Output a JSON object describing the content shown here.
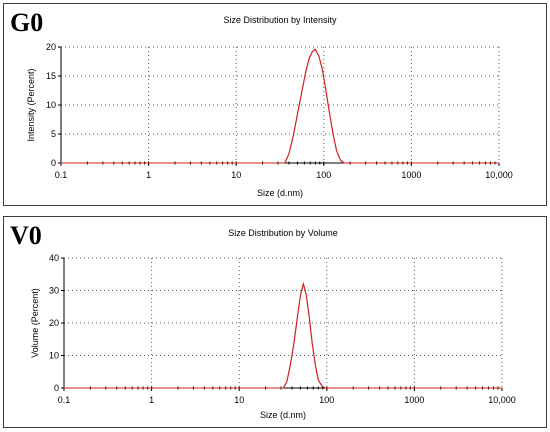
{
  "panels": [
    {
      "tag": "G0"
    },
    {
      "tag": "V0"
    }
  ],
  "colors": {
    "curve": "#d02020",
    "grid": "#555555",
    "axis": "#000000",
    "marker": "#000000"
  },
  "chart_data": [
    {
      "type": "line",
      "title": "Size Distribution by Intensity",
      "xlabel": "Size (d.nm)",
      "ylabel": "Intensity (Percent)",
      "x_scale": "log",
      "xlim": [
        0.1,
        10000
      ],
      "ylim": [
        0,
        20
      ],
      "x_ticks": [
        0.1,
        1,
        10,
        100,
        1000,
        10000
      ],
      "x_tick_labels": [
        "0.1",
        "1",
        "10",
        "100",
        "1000",
        "10,000"
      ],
      "y_ticks": [
        0,
        5,
        10,
        15,
        20
      ],
      "y_tick_labels": [
        "0",
        "5",
        "10",
        "15",
        "20"
      ],
      "grid": true,
      "series": [
        {
          "x": [
            36,
            40,
            45,
            50,
            56,
            62,
            68,
            74,
            80,
            88,
            96,
            105,
            115,
            128,
            140,
            155,
            170
          ],
          "y": [
            0,
            1.6,
            4.8,
            8.4,
            12.2,
            15.6,
            18.0,
            19.2,
            19.6,
            18.4,
            16.2,
            12.8,
            9.0,
            4.9,
            2.1,
            0.5,
            0
          ]
        }
      ]
    },
    {
      "type": "line",
      "title": "Size Distribution by Volume",
      "xlabel": "Size (d.nm)",
      "ylabel": "Volume (Percent)",
      "x_scale": "log",
      "xlim": [
        0.1,
        10000
      ],
      "ylim": [
        0,
        40
      ],
      "x_ticks": [
        0.1,
        1,
        10,
        100,
        1000,
        10000
      ],
      "x_tick_labels": [
        "0.1",
        "1",
        "10",
        "100",
        "1000",
        "10,000"
      ],
      "y_ticks": [
        0,
        10,
        20,
        30,
        40
      ],
      "y_tick_labels": [
        "0",
        "10",
        "20",
        "30",
        "40"
      ],
      "grid": true,
      "series": [
        {
          "x": [
            32,
            35,
            38,
            42,
            46,
            50,
            54,
            58,
            63,
            68,
            74,
            80,
            88,
            96
          ],
          "y": [
            0,
            2.0,
            6.5,
            13.5,
            21.5,
            28.5,
            32.0,
            29.0,
            22.0,
            14.0,
            7.0,
            2.5,
            0.6,
            0
          ]
        }
      ]
    }
  ]
}
